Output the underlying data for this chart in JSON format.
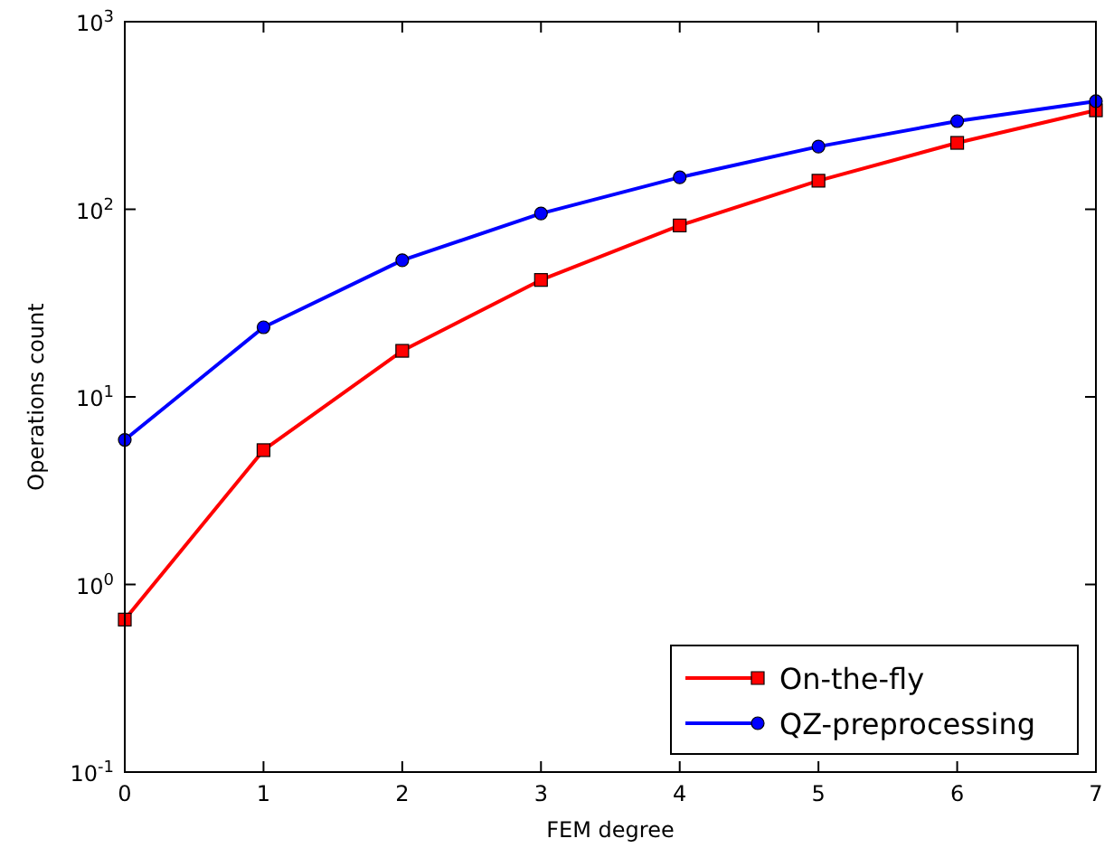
{
  "chart_data": {
    "type": "line",
    "xlabel": "FEM degree",
    "ylabel": "Operations count",
    "x": [
      0,
      1,
      2,
      3,
      4,
      5,
      6,
      7
    ],
    "series": [
      {
        "name": "On-the-fly",
        "color": "#ff0000",
        "marker": "square",
        "values": [
          0.65,
          5.2,
          17.6,
          42,
          82,
          142,
          226,
          337
        ]
      },
      {
        "name": "QZ-preprocessing",
        "color": "#0000ff",
        "marker": "circle",
        "values": [
          5.9,
          23.5,
          53.5,
          95,
          148,
          216,
          295,
          377
        ]
      }
    ],
    "xlim": [
      0,
      7
    ],
    "xticks": [
      0,
      1,
      2,
      3,
      4,
      5,
      6,
      7
    ],
    "log": "y",
    "ylim": [
      0.1,
      1000
    ],
    "yticks": [
      {
        "value": 0.1,
        "label": "10$^{-1}$"
      },
      {
        "value": 1,
        "label": "10$^{0}$"
      },
      {
        "value": 10,
        "label": "10$^{1}$"
      },
      {
        "value": 100,
        "label": "10$^{2}$"
      },
      {
        "value": 1000,
        "label": "10$^{3}$"
      }
    ],
    "grid": false,
    "legend": "bottom right",
    "line_style": "solid"
  }
}
